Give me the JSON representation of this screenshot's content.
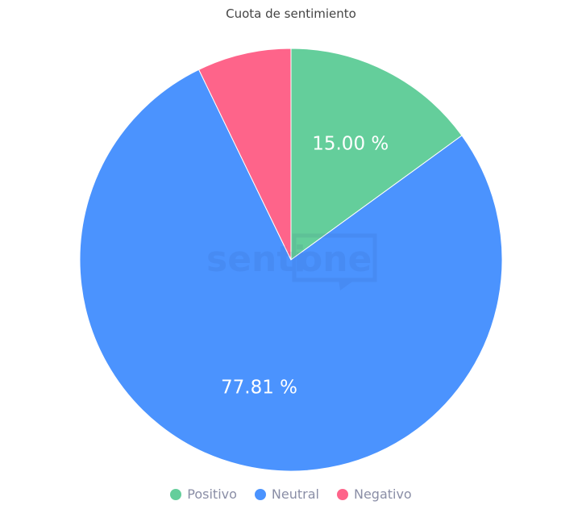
{
  "chart_data": {
    "type": "pie",
    "title": "Cuota de sentimiento",
    "categories": [
      "Positivo",
      "Neutral",
      "Negativo"
    ],
    "values": [
      15.0,
      77.81,
      7.19
    ],
    "data_labels": [
      "15.00 %",
      "77.81 %",
      ""
    ],
    "colors": [
      "#64ce9b",
      "#4b93fe",
      "#fe648a"
    ],
    "legend_position": "bottom",
    "start_angle": "top, clockwise"
  },
  "watermark": "sentione"
}
